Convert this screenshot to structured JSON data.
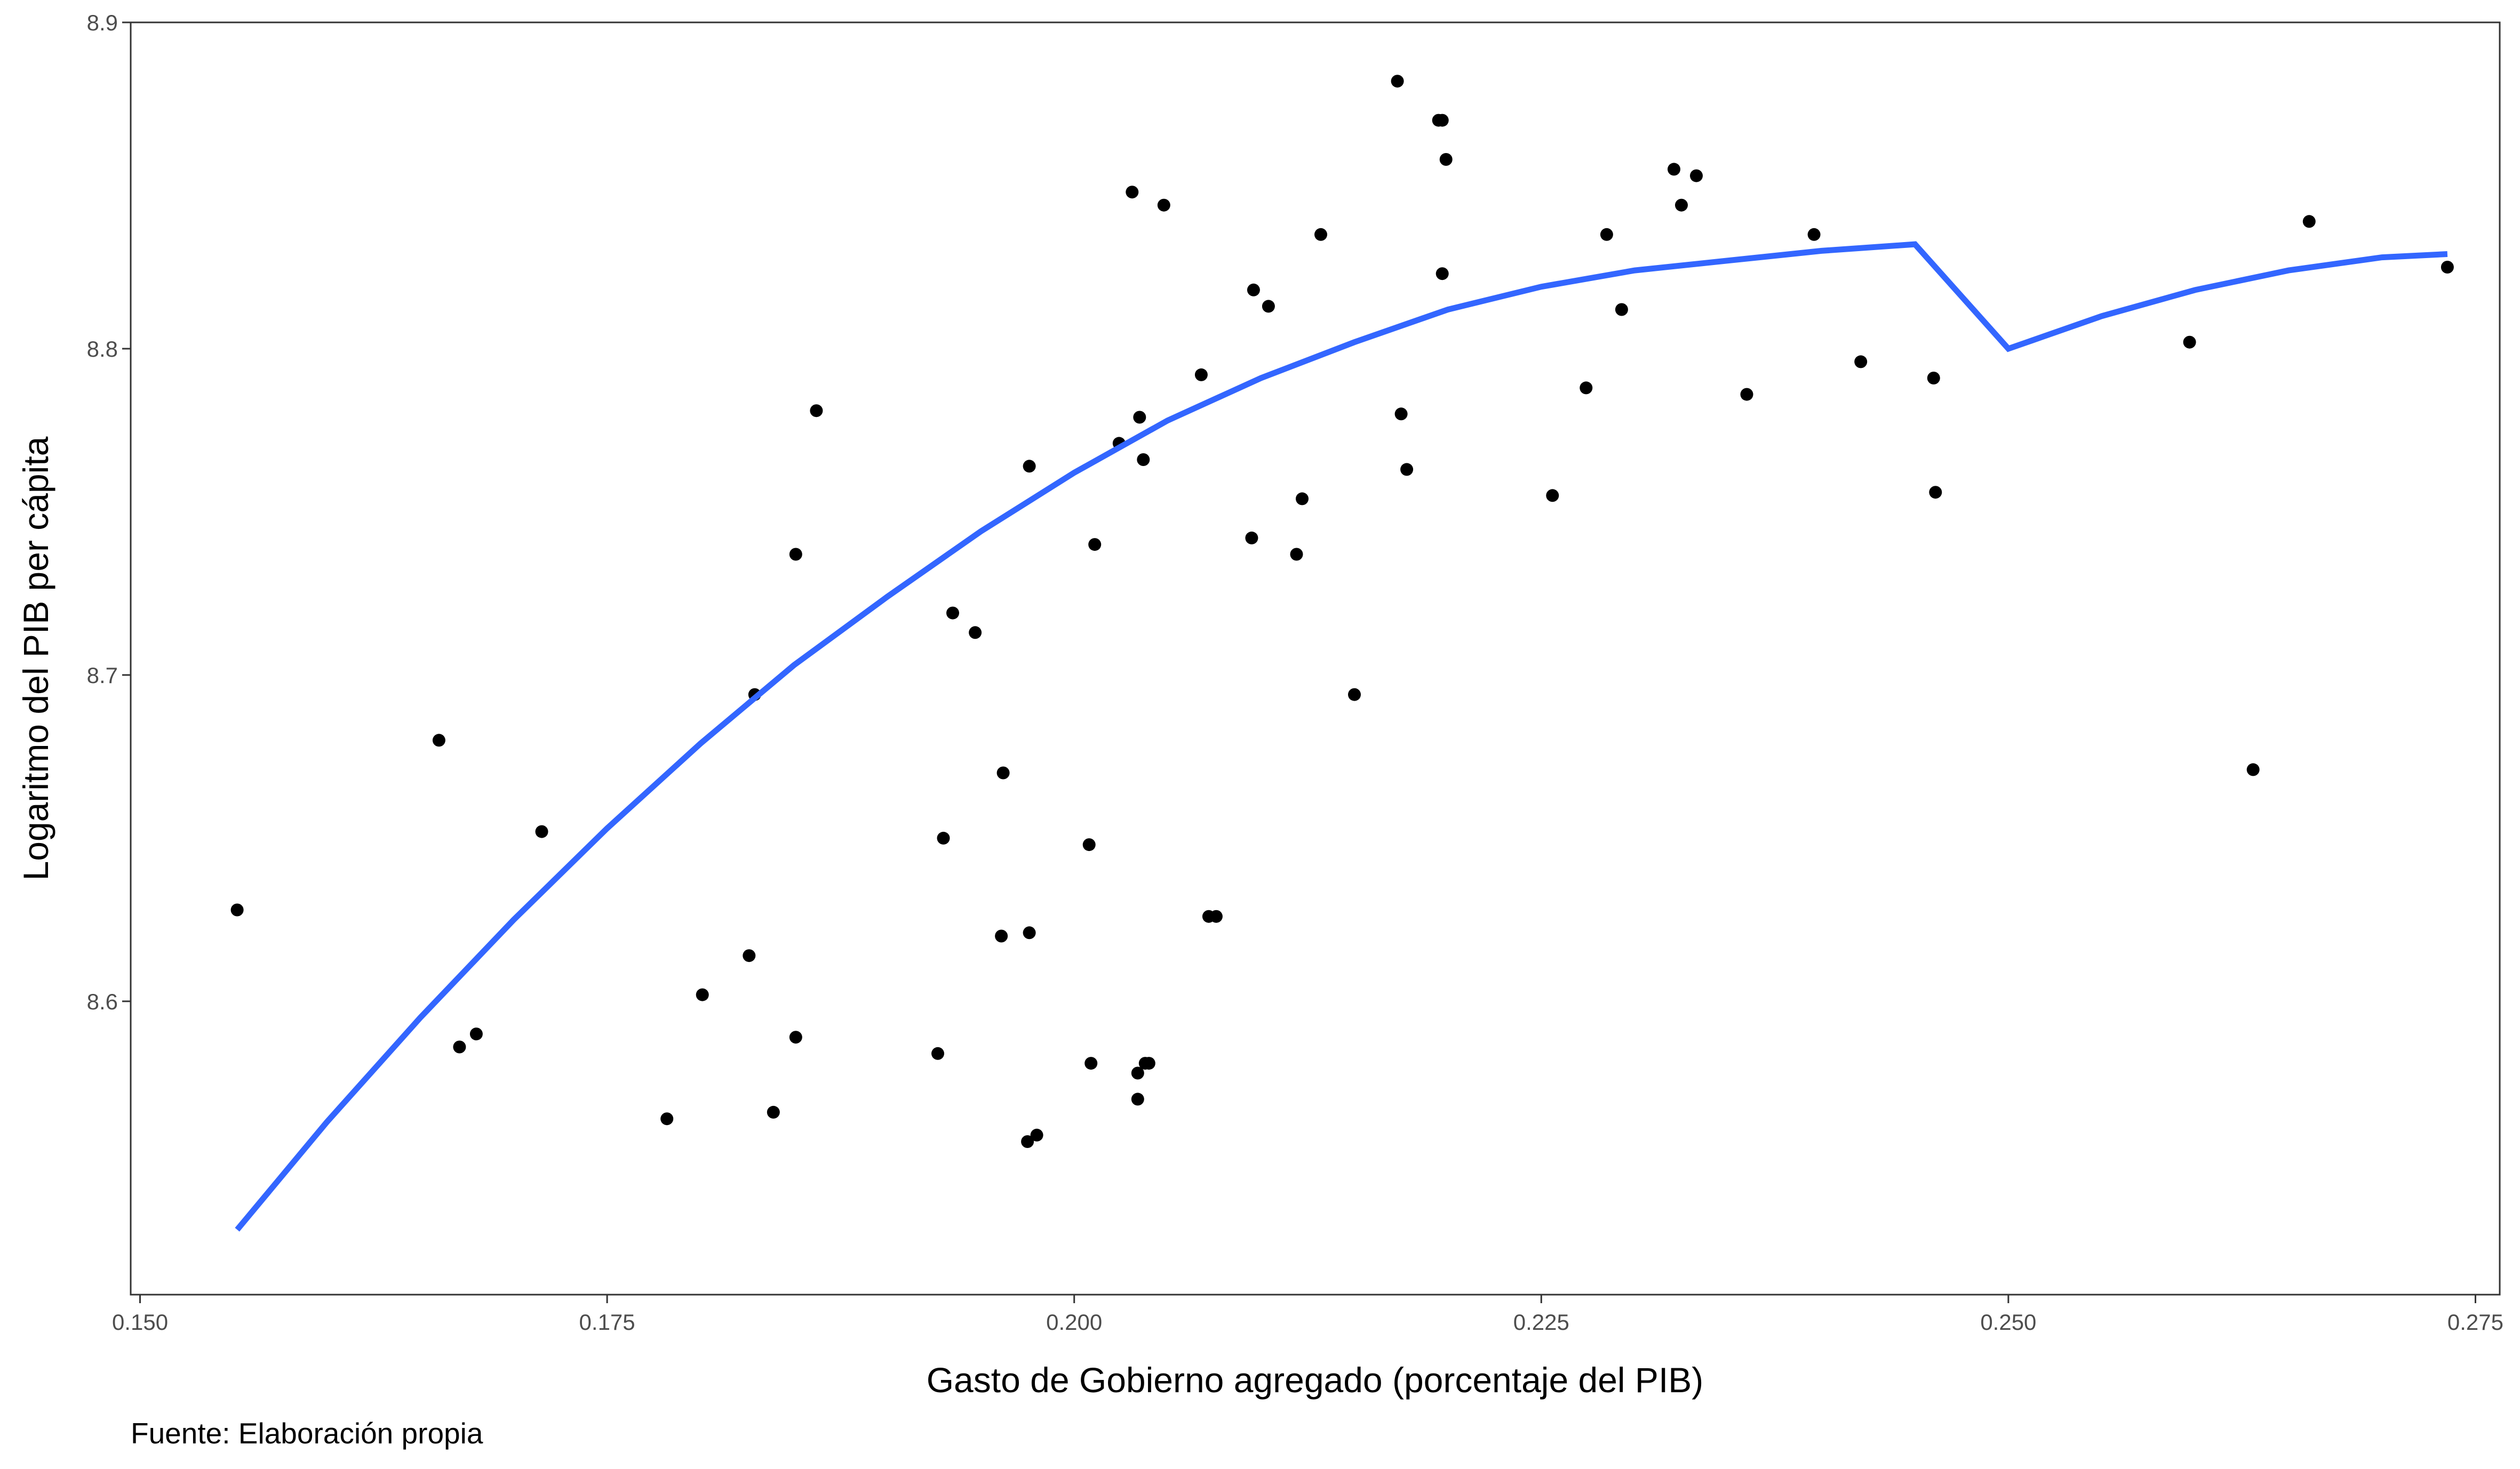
{
  "chart_data": {
    "type": "scatter",
    "xlabel": "Gasto de Gobierno agregado (porcentaje del PIB)",
    "ylabel": "Logaritmo del PIB per cápita",
    "caption": "Fuente: Elaboración propia",
    "xlim": [
      0.1495,
      0.2763
    ],
    "ylim": [
      8.5101,
      8.9
    ],
    "x_ticks": [
      0.15,
      0.175,
      0.2,
      0.225,
      0.25,
      0.275
    ],
    "x_tick_labels": [
      "0.150",
      "0.175",
      "0.200",
      "0.225",
      "0.250",
      "0.275"
    ],
    "y_ticks": [
      8.6,
      8.7,
      8.8,
      8.9
    ],
    "y_tick_labels": [
      "8.6",
      "8.7",
      "8.8",
      "8.9"
    ],
    "grid": false,
    "point_color": "#000000",
    "line_color": "#3366ff",
    "points": [
      [
        0.1552,
        8.628
      ],
      [
        0.166,
        8.68
      ],
      [
        0.1671,
        8.586
      ],
      [
        0.168,
        8.59
      ],
      [
        0.1715,
        8.652
      ],
      [
        0.1782,
        8.564
      ],
      [
        0.1801,
        8.602
      ],
      [
        0.1826,
        8.614
      ],
      [
        0.1829,
        8.694
      ],
      [
        0.1839,
        8.566
      ],
      [
        0.1851,
        8.589
      ],
      [
        0.1851,
        8.737
      ],
      [
        0.1862,
        8.781
      ],
      [
        0.1927,
        8.584
      ],
      [
        0.193,
        8.65
      ],
      [
        0.1935,
        8.719
      ],
      [
        0.1947,
        8.713
      ],
      [
        0.1961,
        8.62
      ],
      [
        0.1962,
        8.67
      ],
      [
        0.1975,
        8.557
      ],
      [
        0.1976,
        8.621
      ],
      [
        0.1976,
        8.764
      ],
      [
        0.198,
        8.559
      ],
      [
        0.2008,
        8.648
      ],
      [
        0.2009,
        8.581
      ],
      [
        0.2011,
        8.74
      ],
      [
        0.2024,
        8.771
      ],
      [
        0.2031,
        8.848
      ],
      [
        0.2034,
        8.578
      ],
      [
        0.2034,
        8.57
      ],
      [
        0.2035,
        8.779
      ],
      [
        0.2037,
        8.766
      ],
      [
        0.2038,
        8.581
      ],
      [
        0.204,
        8.581
      ],
      [
        0.2048,
        8.844
      ],
      [
        0.2068,
        8.792
      ],
      [
        0.2072,
        8.626
      ],
      [
        0.2076,
        8.626
      ],
      [
        0.2095,
        8.742
      ],
      [
        0.2096,
        8.818
      ],
      [
        0.2104,
        8.813
      ],
      [
        0.2119,
        8.737
      ],
      [
        0.2122,
        8.754
      ],
      [
        0.2132,
        8.835
      ],
      [
        0.215,
        8.694
      ],
      [
        0.2173,
        8.882
      ],
      [
        0.2175,
        8.78
      ],
      [
        0.2178,
        8.763
      ],
      [
        0.2195,
        8.87
      ],
      [
        0.2197,
        8.87
      ],
      [
        0.2197,
        8.823
      ],
      [
        0.2199,
        8.858
      ],
      [
        0.2256,
        8.755
      ],
      [
        0.2274,
        8.788
      ],
      [
        0.2285,
        8.835
      ],
      [
        0.2293,
        8.812
      ],
      [
        0.2321,
        8.855
      ],
      [
        0.2325,
        8.844
      ],
      [
        0.2333,
        8.853
      ],
      [
        0.236,
        8.786
      ],
      [
        0.2396,
        8.835
      ],
      [
        0.2421,
        8.796
      ],
      [
        0.246,
        8.791
      ],
      [
        0.2461,
        8.756
      ],
      [
        0.2597,
        8.802
      ],
      [
        0.2631,
        8.671
      ],
      [
        0.2661,
        8.839
      ],
      [
        0.2735,
        8.825
      ]
    ],
    "fit_curve": [
      [
        0.1552,
        8.53
      ],
      [
        0.16,
        8.563
      ],
      [
        0.165,
        8.595
      ],
      [
        0.17,
        8.625
      ],
      [
        0.175,
        8.653
      ],
      [
        0.18,
        8.679
      ],
      [
        0.185,
        8.703
      ],
      [
        0.19,
        8.724
      ],
      [
        0.195,
        8.744
      ],
      [
        0.2,
        8.762
      ],
      [
        0.205,
        8.778
      ],
      [
        0.21,
        8.791
      ],
      [
        0.215,
        8.802
      ],
      [
        0.22,
        8.812
      ],
      [
        0.225,
        8.819
      ],
      [
        0.23,
        8.824
      ],
      [
        0.235,
        8.827
      ],
      [
        0.24,
        8.83
      ],
      [
        0.245,
        8.832
      ],
      [
        0.25,
        8.8
      ],
      [
        0.255,
        8.81
      ],
      [
        0.26,
        8.818
      ],
      [
        0.265,
        8.824
      ],
      [
        0.27,
        8.828
      ],
      [
        0.2735,
        8.829
      ]
    ]
  }
}
